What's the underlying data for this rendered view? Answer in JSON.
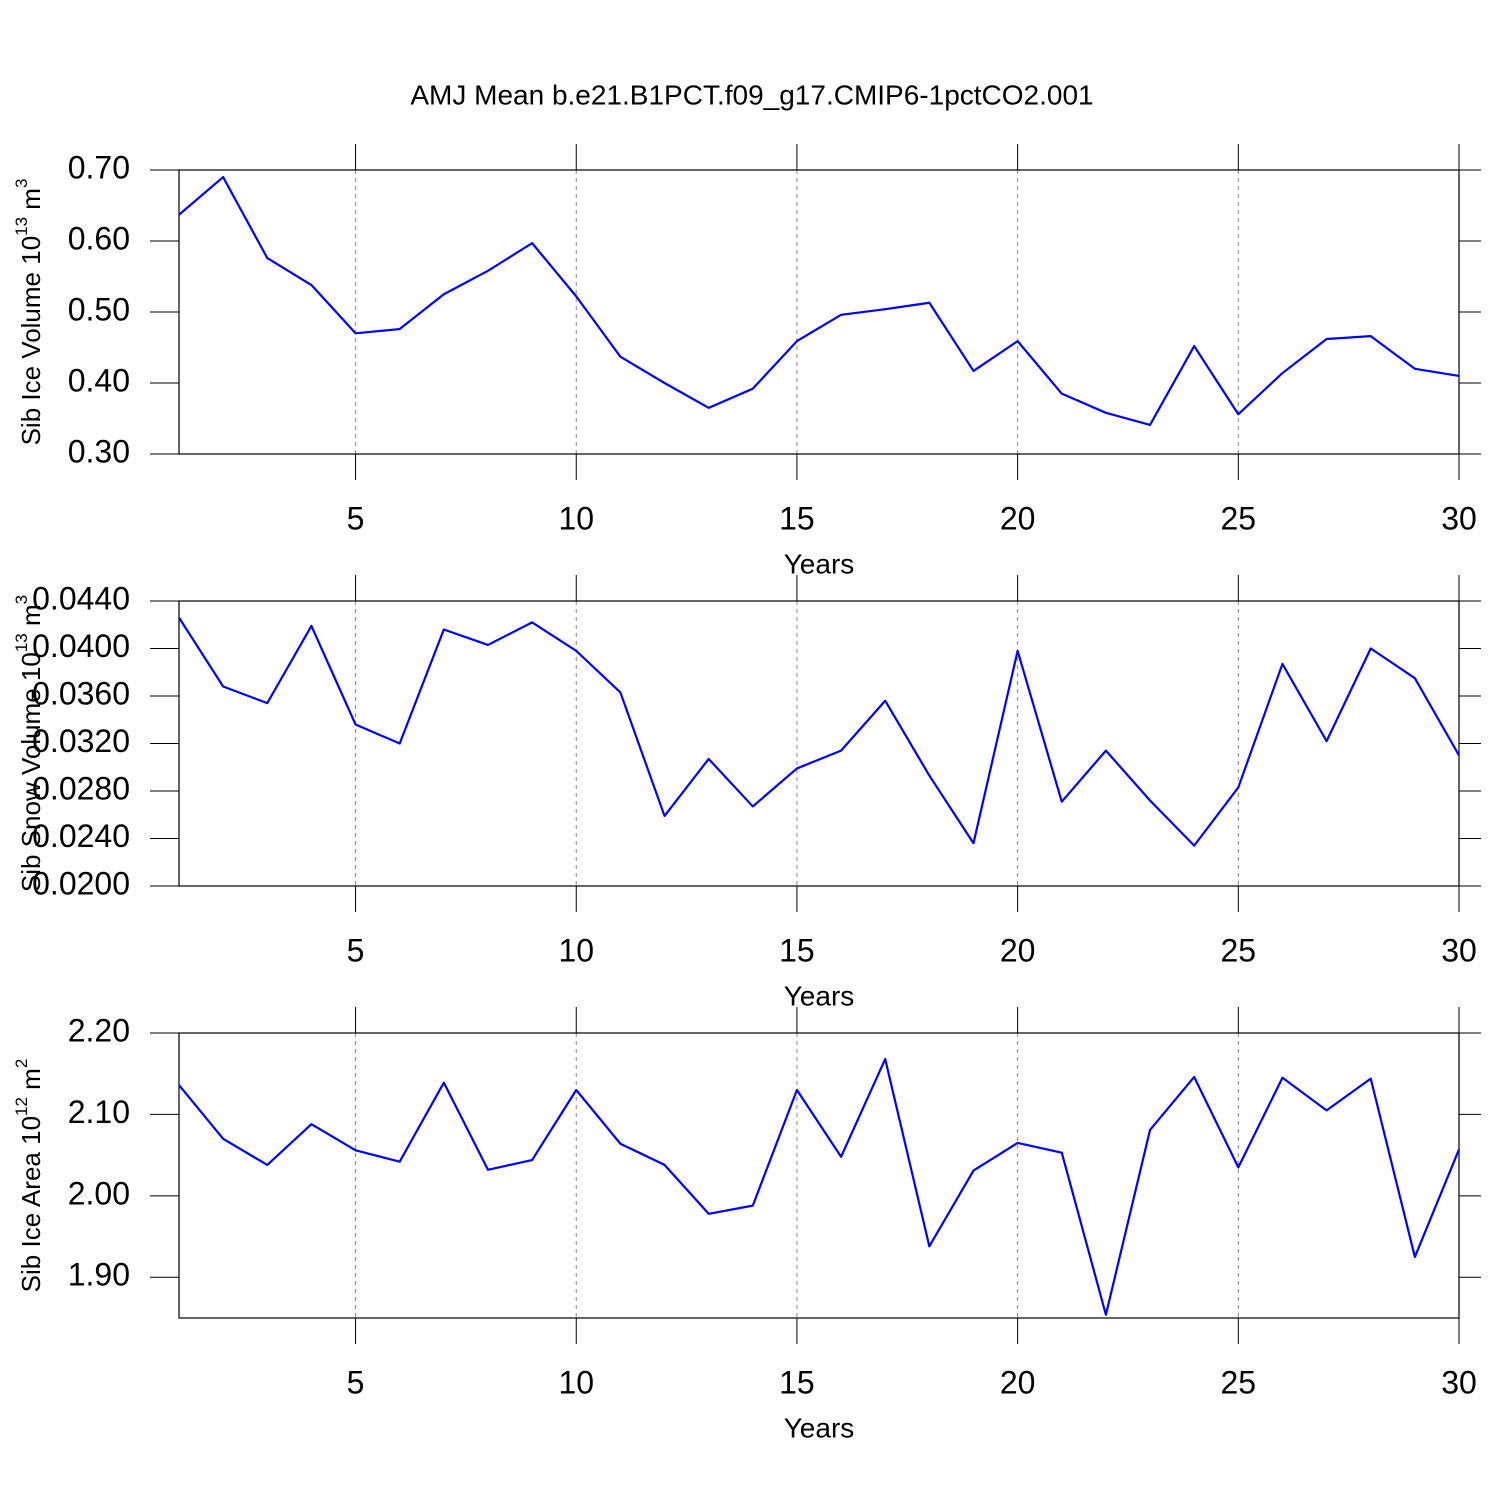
{
  "chart_data": [
    {
      "type": "line",
      "title": "AMJ Mean b.e21.B1PCT.f09_g17.CMIP6-1pctCO2.001",
      "ylabel": [
        "Sib Ice Volume 10",
        "13",
        " m",
        "3"
      ],
      "xlabel": "Years",
      "x": [
        1,
        2,
        3,
        4,
        5,
        6,
        7,
        8,
        9,
        10,
        11,
        12,
        13,
        14,
        15,
        16,
        17,
        18,
        19,
        20,
        21,
        22,
        23,
        24,
        25,
        26,
        27,
        28,
        29,
        30
      ],
      "series": [
        {
          "color": "#0000ff",
          "values": [
            0.637,
            0.69,
            0.576,
            0.538,
            0.47,
            0.476,
            0.525,
            0.558,
            0.597,
            0.522,
            0.437,
            0.4,
            0.365,
            0.392,
            0.459,
            0.496,
            0.504,
            0.513,
            0.417,
            0.459,
            0.385,
            0.358,
            0.341,
            0.452,
            0.356,
            0.414,
            0.462,
            0.466,
            0.42,
            0.41
          ]
        }
      ],
      "xlim": [
        1,
        30
      ],
      "xticks": [
        5,
        10,
        15,
        20,
        25,
        30
      ],
      "ylim": [
        0.3,
        0.7
      ],
      "yticks": [
        {
          "value": 0.3,
          "label": "0.30"
        },
        {
          "value": 0.4,
          "label": "0.40"
        },
        {
          "value": 0.5,
          "label": "0.50"
        },
        {
          "value": 0.6,
          "label": "0.60"
        },
        {
          "value": 0.7,
          "label": "0.70"
        }
      ],
      "grid": "x"
    },
    {
      "type": "line",
      "ylabel": [
        "Sib Snow Volume 10",
        "13",
        " m",
        "3"
      ],
      "xlabel": "Years",
      "x": [
        1,
        2,
        3,
        4,
        5,
        6,
        7,
        8,
        9,
        10,
        11,
        12,
        13,
        14,
        15,
        16,
        17,
        18,
        19,
        20,
        21,
        22,
        23,
        24,
        25,
        26,
        27,
        28,
        29,
        30
      ],
      "series": [
        {
          "color": "#0000ff",
          "values": [
            0.0426,
            0.0368,
            0.0354,
            0.0419,
            0.0336,
            0.032,
            0.0416,
            0.0403,
            0.0422,
            0.0398,
            0.0363,
            0.0259,
            0.0307,
            0.0267,
            0.0299,
            0.0314,
            0.0356,
            0.0293,
            0.0236,
            0.0398,
            0.0271,
            0.0314,
            0.0272,
            0.0234,
            0.0283,
            0.0387,
            0.0322,
            0.04,
            0.0375,
            0.031
          ]
        }
      ],
      "xlim": [
        1,
        30
      ],
      "xticks": [
        5,
        10,
        15,
        20,
        25,
        30
      ],
      "ylim": [
        0.02,
        0.044
      ],
      "yticks": [
        {
          "value": 0.02,
          "label": "0.0200"
        },
        {
          "value": 0.024,
          "label": "0.0240"
        },
        {
          "value": 0.028,
          "label": "0.0280"
        },
        {
          "value": 0.032,
          "label": "0.0320"
        },
        {
          "value": 0.036,
          "label": "0.0360"
        },
        {
          "value": 0.04,
          "label": "0.0400"
        },
        {
          "value": 0.044,
          "label": "0.0440"
        }
      ],
      "grid": "x"
    },
    {
      "type": "line",
      "ylabel": [
        "Sib Ice Area 10",
        "12",
        " m",
        "2"
      ],
      "xlabel": "Years",
      "x": [
        1,
        2,
        3,
        4,
        5,
        6,
        7,
        8,
        9,
        10,
        11,
        12,
        13,
        14,
        15,
        16,
        17,
        18,
        19,
        20,
        21,
        22,
        23,
        24,
        25,
        26,
        27,
        28,
        29,
        30
      ],
      "series": [
        {
          "color": "#0000ff",
          "values": [
            2.136,
            2.07,
            2.038,
            2.088,
            2.056,
            2.042,
            2.139,
            2.032,
            2.044,
            2.13,
            2.064,
            2.038,
            1.978,
            1.988,
            2.13,
            2.048,
            2.168,
            1.938,
            2.031,
            2.065,
            2.053,
            1.854,
            2.081,
            2.146,
            2.035,
            2.145,
            2.105,
            2.144,
            1.925,
            2.057
          ]
        }
      ],
      "xlim": [
        1,
        30
      ],
      "xticks": [
        5,
        10,
        15,
        20,
        25,
        30
      ],
      "ylim": [
        1.85,
        2.2
      ],
      "yticks": [
        {
          "value": 1.9,
          "label": "1.90"
        },
        {
          "value": 2.0,
          "label": "2.00"
        },
        {
          "value": 2.1,
          "label": "2.10"
        },
        {
          "value": 2.2,
          "label": "2.20"
        }
      ],
      "grid": "x"
    }
  ]
}
